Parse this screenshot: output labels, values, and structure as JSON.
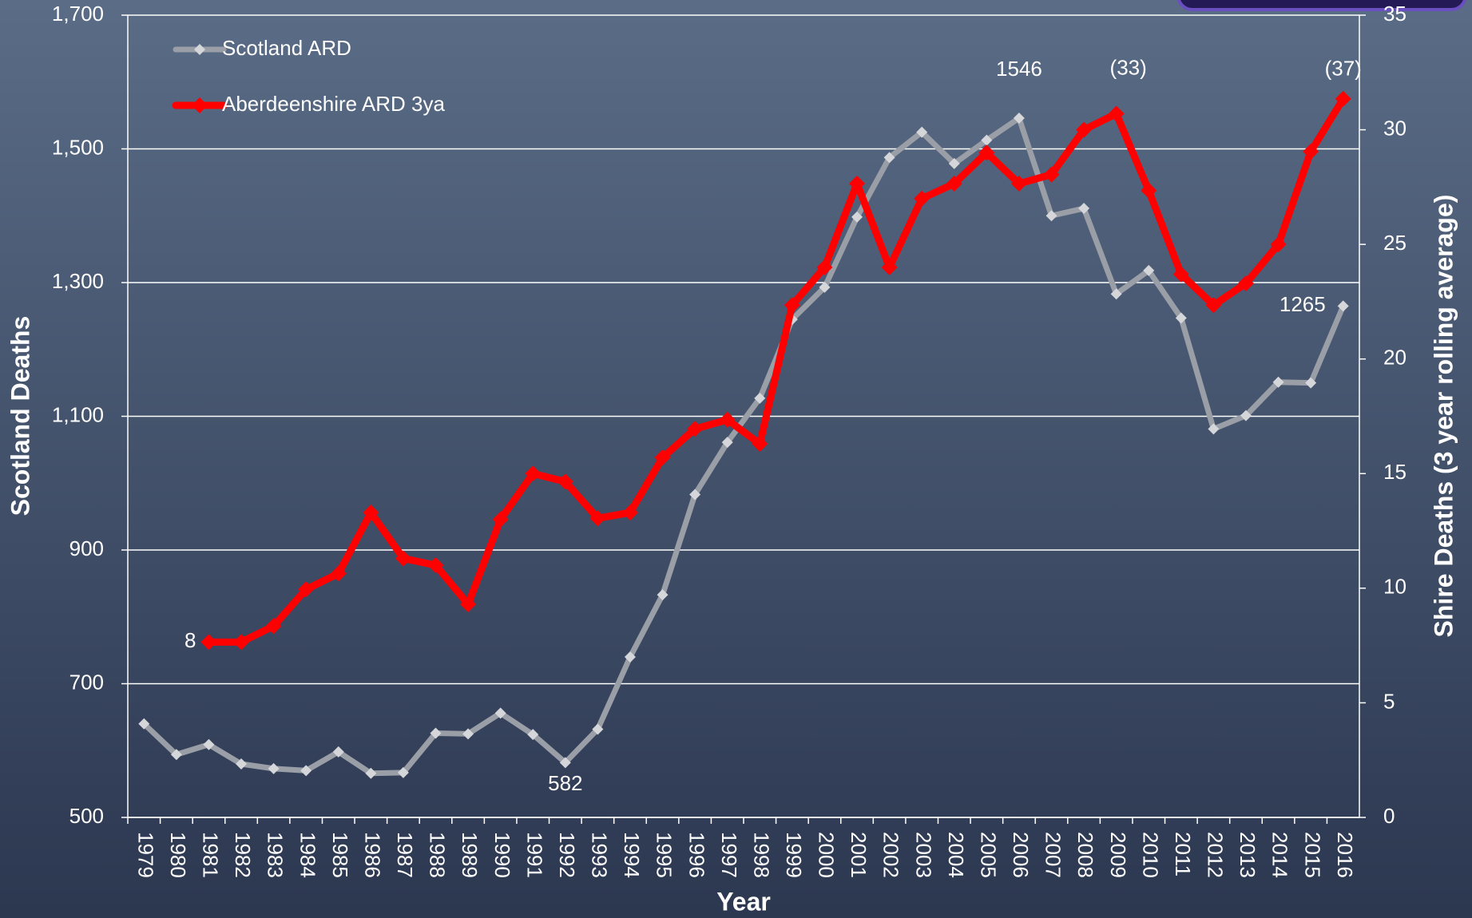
{
  "chart_data": {
    "type": "line",
    "x_label": "Year",
    "y_label": "Scotland Deaths",
    "y2_label": "Shire Deaths (3 year rolling average)",
    "categories": [
      "1979",
      "1980",
      "1981",
      "1982",
      "1983",
      "1984",
      "1985",
      "1986",
      "1987",
      "1988",
      "1989",
      "1990",
      "1991",
      "1992",
      "1993",
      "1994",
      "1995",
      "1996",
      "1997",
      "1998",
      "1999",
      "2000",
      "2001",
      "2002",
      "2003",
      "2004",
      "2005",
      "2006",
      "2007",
      "2008",
      "2009",
      "2010",
      "2011",
      "2012",
      "2013",
      "2014",
      "2015",
      "2016"
    ],
    "series": [
      {
        "name": "Scotland ARD",
        "color": "#9a9ea6",
        "marker_color": "#d4d6da",
        "values": [
          640,
          594,
          609,
          580,
          573,
          570,
          598,
          566,
          567,
          626,
          625,
          656,
          624,
          582,
          632,
          740,
          833,
          983,
          1061,
          1127,
          1245,
          1293,
          1398,
          1487,
          1525,
          1478,
          1513,
          1546,
          1400,
          1411,
          1283,
          1318,
          1247,
          1081,
          1101,
          1151,
          1150,
          1265
        ]
      },
      {
        "name": "Aberdeenshire ARD 3ya",
        "color": "#ff0000",
        "marker_color": "#ff0000",
        "axis": "y2",
        "values": [
          null,
          null,
          7.65,
          7.65,
          8.35,
          9.95,
          10.64,
          13.3,
          11.3,
          11.0,
          9.3,
          13.0,
          15.0,
          14.65,
          13.05,
          13.3,
          15.7,
          16.95,
          17.35,
          16.3,
          22.35,
          24.0,
          27.65,
          24.0,
          27.0,
          27.65,
          29.0,
          27.65,
          28.05,
          30.0,
          30.7,
          27.35,
          23.7,
          22.35,
          23.3,
          25.0,
          29.05,
          31.35
        ]
      }
    ],
    "annotations": [
      {
        "text": "8",
        "series": "Aberdeenshire ARD 3ya",
        "x": "1981"
      },
      {
        "text": "582",
        "series": "Scotland ARD",
        "x": "1992"
      },
      {
        "text": "1546",
        "series": "Scotland ARD",
        "x": "2006"
      },
      {
        "text": "(33)",
        "series": "Aberdeenshire ARD 3ya",
        "x": "2009"
      },
      {
        "text": "1265",
        "series": "Scotland ARD",
        "x": "2016"
      },
      {
        "text": "(37)",
        "series": "Aberdeenshire ARD 3ya",
        "x": "2016"
      }
    ],
    "ylim": [
      500,
      1700
    ],
    "yticks": [
      500,
      700,
      900,
      {
        "value": 1100,
        "label": "1,100"
      },
      {
        "value": 1300,
        "label": "1,300"
      },
      {
        "value": 1500,
        "label": "1,500"
      },
      {
        "value": 1700,
        "label": "1,700"
      }
    ],
    "y2lim": [
      0,
      35
    ],
    "y2ticks": [
      0,
      5,
      10,
      15,
      20,
      25,
      30,
      35
    ],
    "grid": true,
    "legend": "upper left"
  }
}
